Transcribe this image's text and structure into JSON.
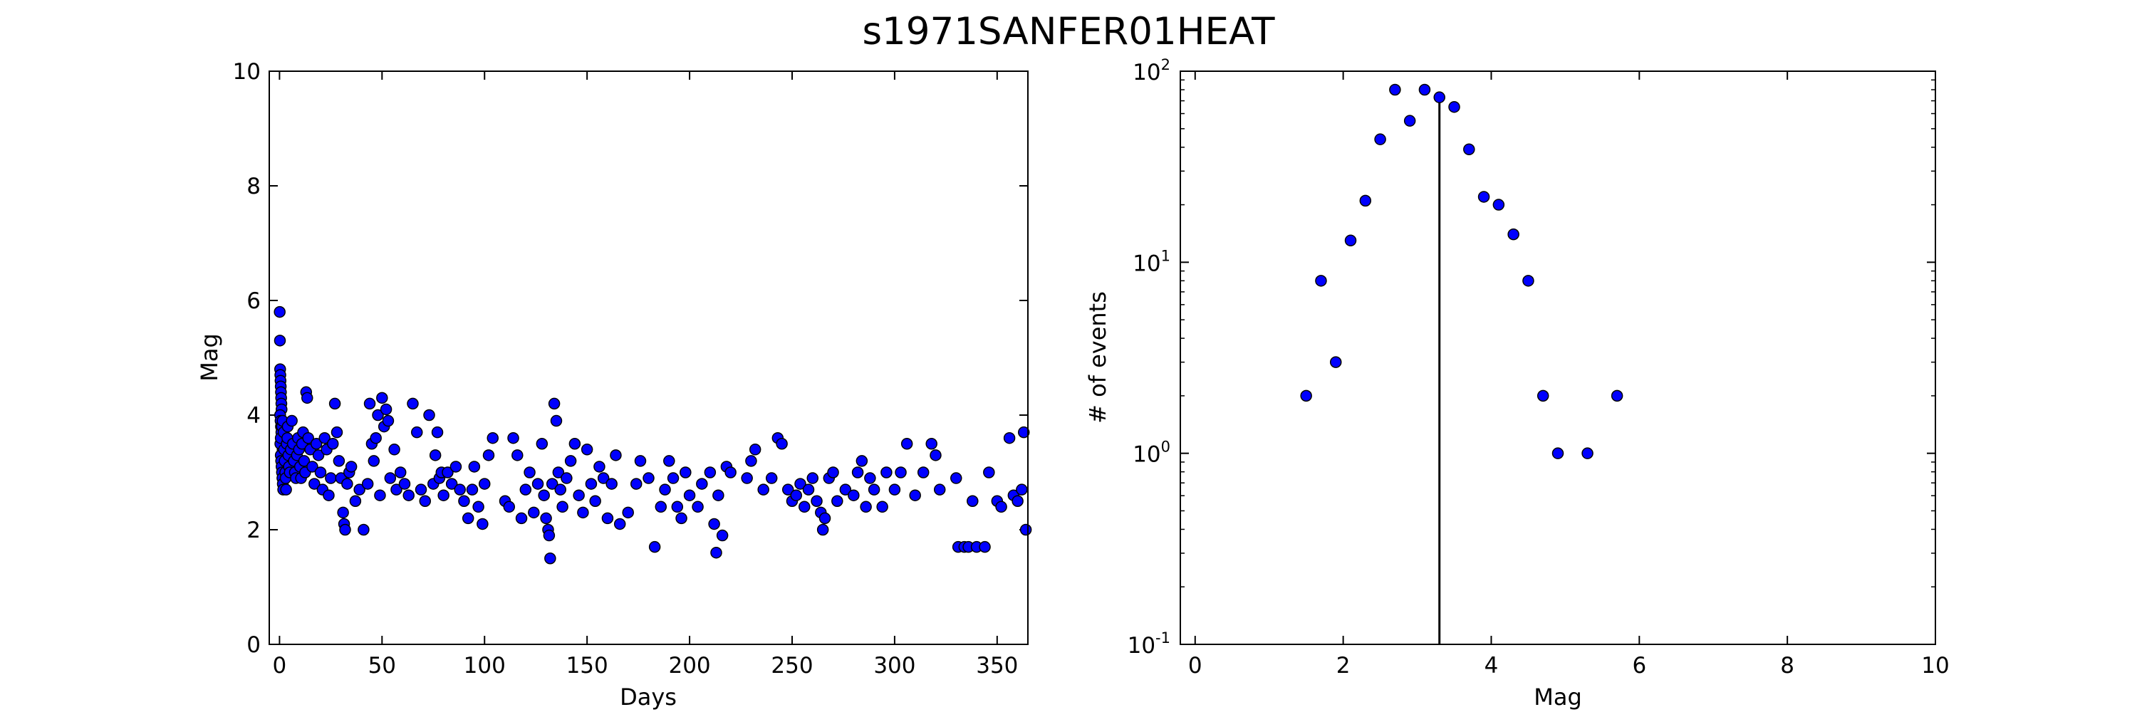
{
  "figure": {
    "title": "s1971SANFER01HEAT"
  },
  "chart_data": [
    {
      "type": "scatter",
      "xlabel": "Days",
      "ylabel": "Mag",
      "xlim": [
        -5,
        365
      ],
      "ylim": [
        0,
        10
      ],
      "xticks": [
        0,
        50,
        100,
        150,
        200,
        250,
        300,
        350
      ],
      "yticks": [
        0,
        2,
        4,
        6,
        8,
        10
      ],
      "grid": false,
      "marker_color": "#0000ff",
      "points": [
        [
          0.1,
          5.8
        ],
        [
          0.2,
          5.3
        ],
        [
          0.3,
          4.8
        ],
        [
          0.4,
          4.7
        ],
        [
          0.5,
          4.6
        ],
        [
          0.6,
          4.5
        ],
        [
          0.7,
          4.4
        ],
        [
          0.8,
          4.3
        ],
        [
          0.9,
          4.2
        ],
        [
          1.0,
          4.1
        ],
        [
          0.3,
          4.0
        ],
        [
          0.5,
          3.9
        ],
        [
          0.7,
          3.8
        ],
        [
          0.9,
          3.7
        ],
        [
          1.1,
          3.6
        ],
        [
          1.3,
          3.5
        ],
        [
          1.5,
          3.4
        ],
        [
          0.6,
          3.3
        ],
        [
          0.8,
          3.2
        ],
        [
          1.0,
          3.1
        ],
        [
          1.2,
          3.0
        ],
        [
          1.4,
          2.9
        ],
        [
          1.6,
          2.8
        ],
        [
          1.8,
          2.7
        ],
        [
          0.4,
          3.5
        ],
        [
          0.6,
          3.6
        ],
        [
          1.2,
          3.8
        ],
        [
          1.5,
          3.9
        ],
        [
          2.0,
          3.7
        ],
        [
          2.2,
          3.4
        ],
        [
          2.5,
          3.2
        ],
        [
          2.8,
          3.0
        ],
        [
          3.0,
          2.9
        ],
        [
          3.2,
          2.7
        ],
        [
          3.5,
          3.5
        ],
        [
          3.8,
          3.6
        ],
        [
          4.0,
          3.8
        ],
        [
          4.3,
          3.3
        ],
        [
          4.6,
          3.1
        ],
        [
          5.0,
          3.0
        ],
        [
          5.5,
          3.4
        ],
        [
          6.0,
          3.9
        ],
        [
          6.5,
          3.5
        ],
        [
          7.0,
          3.2
        ],
        [
          7.5,
          3.0
        ],
        [
          8.0,
          2.9
        ],
        [
          8.5,
          3.3
        ],
        [
          9.0,
          3.6
        ],
        [
          9.5,
          3.4
        ],
        [
          10.0,
          3.1
        ],
        [
          10.5,
          2.9
        ],
        [
          11.0,
          3.5
        ],
        [
          11.5,
          3.7
        ],
        [
          12.0,
          3.2
        ],
        [
          12.5,
          3.0
        ],
        [
          13.0,
          4.4
        ],
        [
          13.5,
          4.3
        ],
        [
          14.0,
          3.6
        ],
        [
          15.0,
          3.4
        ],
        [
          16.0,
          3.1
        ],
        [
          17.0,
          2.8
        ],
        [
          18.0,
          3.5
        ],
        [
          19.0,
          3.3
        ],
        [
          20.0,
          3.0
        ],
        [
          21.0,
          2.7
        ],
        [
          22.0,
          3.6
        ],
        [
          23.0,
          3.4
        ],
        [
          24.0,
          2.6
        ],
        [
          25.0,
          2.9
        ],
        [
          26.0,
          3.5
        ],
        [
          27.0,
          4.2
        ],
        [
          28.0,
          3.7
        ],
        [
          29.0,
          3.2
        ],
        [
          30.0,
          2.9
        ],
        [
          31.0,
          2.3
        ],
        [
          31.5,
          2.1
        ],
        [
          32.0,
          2.0
        ],
        [
          33.0,
          2.8
        ],
        [
          34.0,
          3.0
        ],
        [
          35.0,
          3.1
        ],
        [
          37.0,
          2.5
        ],
        [
          39.0,
          2.7
        ],
        [
          41.0,
          2.0
        ],
        [
          43.0,
          2.8
        ],
        [
          44.0,
          4.2
        ],
        [
          45.0,
          3.5
        ],
        [
          46.0,
          3.2
        ],
        [
          47.0,
          3.6
        ],
        [
          48.0,
          4.0
        ],
        [
          49.0,
          2.6
        ],
        [
          50.0,
          4.3
        ],
        [
          51.0,
          3.8
        ],
        [
          52.0,
          4.1
        ],
        [
          53.0,
          3.9
        ],
        [
          54.0,
          2.9
        ],
        [
          56.0,
          3.4
        ],
        [
          57.0,
          2.7
        ],
        [
          59.0,
          3.0
        ],
        [
          61.0,
          2.8
        ],
        [
          63.0,
          2.6
        ],
        [
          65.0,
          4.2
        ],
        [
          67.0,
          3.7
        ],
        [
          69.0,
          2.7
        ],
        [
          71.0,
          2.5
        ],
        [
          73.0,
          4.0
        ],
        [
          75.0,
          2.8
        ],
        [
          76.0,
          3.3
        ],
        [
          77.0,
          3.7
        ],
        [
          78.0,
          2.9
        ],
        [
          79.0,
          3.0
        ],
        [
          80.0,
          2.6
        ],
        [
          82.0,
          3.0
        ],
        [
          84.0,
          2.8
        ],
        [
          86.0,
          3.1
        ],
        [
          88.0,
          2.7
        ],
        [
          90.0,
          2.5
        ],
        [
          92.0,
          2.2
        ],
        [
          94.0,
          2.7
        ],
        [
          95.0,
          3.1
        ],
        [
          97.0,
          2.4
        ],
        [
          99.0,
          2.1
        ],
        [
          100.0,
          2.8
        ],
        [
          102.0,
          3.3
        ],
        [
          104.0,
          3.6
        ],
        [
          110.0,
          2.5
        ],
        [
          112.0,
          2.4
        ],
        [
          114.0,
          3.6
        ],
        [
          116.0,
          3.3
        ],
        [
          118.0,
          2.2
        ],
        [
          120.0,
          2.7
        ],
        [
          122.0,
          3.0
        ],
        [
          124.0,
          2.3
        ],
        [
          126.0,
          2.8
        ],
        [
          128.0,
          3.5
        ],
        [
          129.0,
          2.6
        ],
        [
          130.0,
          2.2
        ],
        [
          131.0,
          2.0
        ],
        [
          131.5,
          1.9
        ],
        [
          132.0,
          1.5
        ],
        [
          133.0,
          2.8
        ],
        [
          134.0,
          4.2
        ],
        [
          135.0,
          3.9
        ],
        [
          136.0,
          3.0
        ],
        [
          137.0,
          2.7
        ],
        [
          138.0,
          2.4
        ],
        [
          140.0,
          2.9
        ],
        [
          142.0,
          3.2
        ],
        [
          144.0,
          3.5
        ],
        [
          146.0,
          2.6
        ],
        [
          148.0,
          2.3
        ],
        [
          150.0,
          3.4
        ],
        [
          152.0,
          2.8
        ],
        [
          154.0,
          2.5
        ],
        [
          156.0,
          3.1
        ],
        [
          158.0,
          2.9
        ],
        [
          160.0,
          2.2
        ],
        [
          162.0,
          2.8
        ],
        [
          164.0,
          3.3
        ],
        [
          166.0,
          2.1
        ],
        [
          170.0,
          2.3
        ],
        [
          174.0,
          2.8
        ],
        [
          176.0,
          3.2
        ],
        [
          180.0,
          2.9
        ],
        [
          183.0,
          1.7
        ],
        [
          186.0,
          2.4
        ],
        [
          188.0,
          2.7
        ],
        [
          190.0,
          3.2
        ],
        [
          192.0,
          2.9
        ],
        [
          194.0,
          2.4
        ],
        [
          196.0,
          2.2
        ],
        [
          198.0,
          3.0
        ],
        [
          200.0,
          2.6
        ],
        [
          204.0,
          2.4
        ],
        [
          206.0,
          2.8
        ],
        [
          210.0,
          3.0
        ],
        [
          212.0,
          2.1
        ],
        [
          213.0,
          1.6
        ],
        [
          214.0,
          2.6
        ],
        [
          216.0,
          1.9
        ],
        [
          218.0,
          3.1
        ],
        [
          220.0,
          3.0
        ],
        [
          228.0,
          2.9
        ],
        [
          230.0,
          3.2
        ],
        [
          232.0,
          3.4
        ],
        [
          236.0,
          2.7
        ],
        [
          240.0,
          2.9
        ],
        [
          243.0,
          3.6
        ],
        [
          245.0,
          3.5
        ],
        [
          248.0,
          2.7
        ],
        [
          250.0,
          2.5
        ],
        [
          252.0,
          2.6
        ],
        [
          254.0,
          2.8
        ],
        [
          256.0,
          2.4
        ],
        [
          258.0,
          2.7
        ],
        [
          260.0,
          2.9
        ],
        [
          262.0,
          2.5
        ],
        [
          264.0,
          2.3
        ],
        [
          265.0,
          2.0
        ],
        [
          266.0,
          2.2
        ],
        [
          268.0,
          2.9
        ],
        [
          270.0,
          3.0
        ],
        [
          272.0,
          2.5
        ],
        [
          276.0,
          2.7
        ],
        [
          280.0,
          2.6
        ],
        [
          282.0,
          3.0
        ],
        [
          284.0,
          3.2
        ],
        [
          286.0,
          2.4
        ],
        [
          288.0,
          2.9
        ],
        [
          290.0,
          2.7
        ],
        [
          294.0,
          2.4
        ],
        [
          296.0,
          3.0
        ],
        [
          300.0,
          2.7
        ],
        [
          303.0,
          3.0
        ],
        [
          306.0,
          3.5
        ],
        [
          310.0,
          2.6
        ],
        [
          314.0,
          3.0
        ],
        [
          318.0,
          3.5
        ],
        [
          320.0,
          3.3
        ],
        [
          322.0,
          2.7
        ],
        [
          330.0,
          2.9
        ],
        [
          331.0,
          1.7
        ],
        [
          334.0,
          1.7
        ],
        [
          336.0,
          1.7
        ],
        [
          338.0,
          2.5
        ],
        [
          340.0,
          1.7
        ],
        [
          344.0,
          1.7
        ],
        [
          346.0,
          3.0
        ],
        [
          350.0,
          2.5
        ],
        [
          352.0,
          2.4
        ],
        [
          356.0,
          3.6
        ],
        [
          358.0,
          2.6
        ],
        [
          360.0,
          2.5
        ],
        [
          362.0,
          2.7
        ],
        [
          363.0,
          3.7
        ],
        [
          364.0,
          2.0
        ]
      ]
    },
    {
      "type": "scatter",
      "xlabel": "Mag",
      "ylabel": "# of events",
      "xlim": [
        -0.2,
        10
      ],
      "ylim": [
        0.1,
        100
      ],
      "yscale": "log",
      "xticks": [
        0,
        2,
        4,
        6,
        8,
        10
      ],
      "yticks": [
        {
          "base": "10",
          "exp": "-1",
          "value": 0.1
        },
        {
          "base": "10",
          "exp": "0",
          "value": 1
        },
        {
          "base": "10",
          "exp": "1",
          "value": 10
        },
        {
          "base": "10",
          "exp": "2",
          "value": 100
        }
      ],
      "grid": false,
      "marker_color": "#0000ff",
      "vline_x": 3.3,
      "points": [
        [
          1.5,
          2
        ],
        [
          1.7,
          8
        ],
        [
          1.9,
          3
        ],
        [
          2.1,
          13
        ],
        [
          2.3,
          21
        ],
        [
          2.5,
          44
        ],
        [
          2.7,
          80
        ],
        [
          2.9,
          55
        ],
        [
          3.1,
          80
        ],
        [
          3.3,
          73
        ],
        [
          3.5,
          65
        ],
        [
          3.7,
          39
        ],
        [
          3.9,
          22
        ],
        [
          4.1,
          20
        ],
        [
          4.3,
          14
        ],
        [
          4.5,
          8
        ],
        [
          4.7,
          2
        ],
        [
          4.9,
          1
        ],
        [
          5.3,
          1
        ],
        [
          5.7,
          2
        ]
      ]
    }
  ]
}
